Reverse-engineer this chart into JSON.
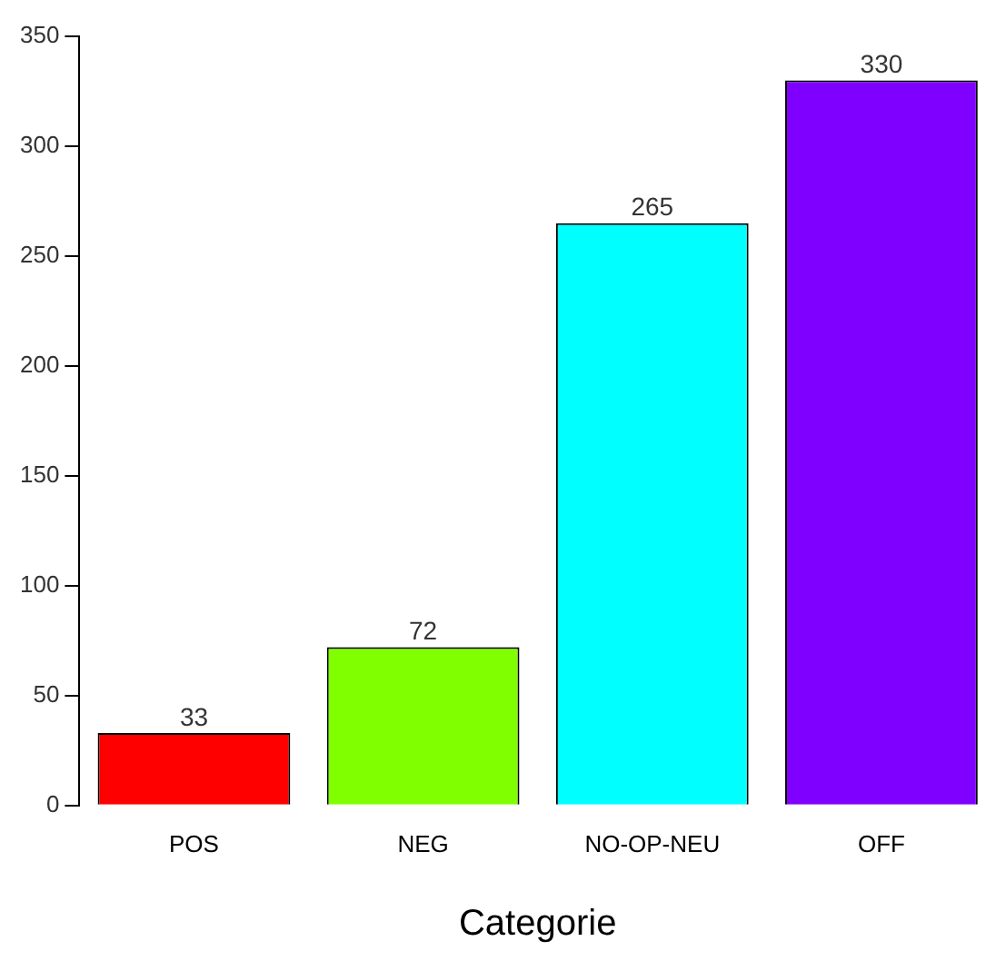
{
  "chart_data": {
    "type": "bar",
    "xlabel": "Categorie",
    "categories": [
      "POS",
      "NEG",
      "NO-OP-NEU",
      "OFF"
    ],
    "values": [
      33,
      72,
      265,
      330
    ],
    "colors": [
      "#ff0000",
      "#80ff00",
      "#00ffff",
      "#8000ff"
    ],
    "ylim": [
      0,
      350
    ],
    "yticks": [
      0,
      50,
      100,
      150,
      200,
      250,
      300,
      350
    ],
    "grid": false,
    "legend": false,
    "data_labels": true
  }
}
